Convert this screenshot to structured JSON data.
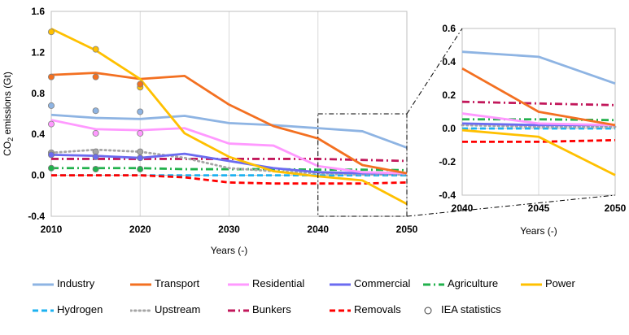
{
  "chart_data": [
    {
      "type": "line",
      "ylabel": "CO2 emissions (Gt)",
      "xlabel": "Years (-)",
      "xlim": [
        2010,
        2050
      ],
      "ylim": [
        -0.4,
        1.6
      ],
      "xticks": [
        2010,
        2020,
        2030,
        2040,
        2050
      ],
      "yticks": [
        -0.4,
        0.0,
        0.4,
        0.8,
        1.2,
        1.6
      ],
      "tick_labels_x": [
        "2010",
        "2020",
        "2030",
        "2040",
        "2050"
      ],
      "tick_labels_y": [
        "-0.4",
        "0.0",
        "0.4",
        "0.8",
        "1.2",
        "1.6"
      ],
      "grid": "vertical",
      "x": [
        2010,
        2015,
        2020,
        2025,
        2030,
        2035,
        2040,
        2045,
        2050
      ],
      "series": [
        {
          "name": "Industry",
          "color": "#8EB4E3",
          "style": "solid",
          "values": [
            0.59,
            0.56,
            0.55,
            0.58,
            0.51,
            0.49,
            0.46,
            0.43,
            0.27
          ]
        },
        {
          "name": "Transport",
          "color": "#F37021",
          "style": "solid",
          "values": [
            0.98,
            1.0,
            0.94,
            0.97,
            0.69,
            0.48,
            0.36,
            0.1,
            0.02
          ]
        },
        {
          "name": "Residential",
          "color": "#FF99FF",
          "style": "solid",
          "values": [
            0.54,
            0.45,
            0.44,
            0.46,
            0.31,
            0.29,
            0.09,
            0.03,
            0.02
          ]
        },
        {
          "name": "Commercial",
          "color": "#6B6BF0",
          "style": "solid",
          "values": [
            0.2,
            0.19,
            0.17,
            0.21,
            0.14,
            0.07,
            0.03,
            0.02,
            0.02
          ]
        },
        {
          "name": "Agriculture",
          "color": "#22B14C",
          "style": "dashdot",
          "values": [
            0.07,
            0.07,
            0.07,
            0.06,
            0.06,
            0.06,
            0.055,
            0.055,
            0.05
          ]
        },
        {
          "name": "Power",
          "color": "#FFC000",
          "style": "solid",
          "values": [
            1.43,
            1.22,
            0.94,
            0.41,
            0.18,
            0.04,
            -0.01,
            -0.05,
            -0.28
          ]
        },
        {
          "name": "Hydrogen",
          "color": "#1EB2F0",
          "style": "dashed",
          "values": [
            0.0,
            0.0,
            0.0,
            0.0,
            0.0,
            0.0,
            0.0,
            0.0,
            0.0
          ]
        },
        {
          "name": "Upstream",
          "color": "#A6A6A6",
          "style": "dotted",
          "values": [
            0.22,
            0.25,
            0.23,
            0.17,
            0.07,
            0.04,
            0.02,
            0.01,
            0.01
          ]
        },
        {
          "name": "Bunkers",
          "color": "#C2185B",
          "style": "dashdot",
          "values": [
            0.16,
            0.16,
            0.16,
            0.16,
            0.16,
            0.16,
            0.16,
            0.15,
            0.14
          ]
        },
        {
          "name": "Removals",
          "color": "#FF0000",
          "style": "dashed",
          "values": [
            0.0,
            0.0,
            0.0,
            -0.02,
            -0.07,
            -0.08,
            -0.08,
            -0.08,
            -0.07
          ]
        }
      ],
      "iea_statistics": {
        "name": "IEA statistics",
        "points": [
          {
            "series": "Power",
            "x": [
              2010,
              2015,
              2020
            ],
            "y": [
              1.4,
              1.23,
              0.86
            ]
          },
          {
            "series": "Transport",
            "x": [
              2010,
              2015,
              2020
            ],
            "y": [
              0.96,
              0.96,
              0.89
            ]
          },
          {
            "series": "Industry",
            "x": [
              2010,
              2015,
              2020
            ],
            "y": [
              0.68,
              0.63,
              0.62
            ]
          },
          {
            "series": "Residential",
            "x": [
              2010,
              2015,
              2020
            ],
            "y": [
              0.5,
              0.41,
              0.41
            ]
          },
          {
            "series": "Upstream",
            "x": [
              2010,
              2015,
              2020
            ],
            "y": [
              0.22,
              0.23,
              0.23
            ]
          },
          {
            "series": "Commercial",
            "x": [
              2010,
              2015,
              2020
            ],
            "y": [
              0.2,
              0.18,
              0.17
            ]
          },
          {
            "series": "Agriculture",
            "x": [
              2010,
              2015,
              2020
            ],
            "y": [
              0.07,
              0.06,
              0.06
            ]
          }
        ]
      }
    },
    {
      "type": "line",
      "xlabel": "Years (-)",
      "xlim": [
        2040,
        2050
      ],
      "ylim": [
        -0.4,
        0.6
      ],
      "xticks": [
        2040,
        2045,
        2050
      ],
      "yticks": [
        -0.4,
        -0.2,
        0.0,
        0.2,
        0.4,
        0.6
      ],
      "tick_labels_x": [
        "2040",
        "2045",
        "2050"
      ],
      "tick_labels_y": [
        "-0.4",
        "-0.2",
        "0.0",
        "0.2",
        "0.4",
        "0.6"
      ],
      "grid": "vertical",
      "x": [
        2040,
        2045,
        2050
      ],
      "series": [
        {
          "name": "Industry",
          "values": [
            0.46,
            0.43,
            0.27
          ]
        },
        {
          "name": "Transport",
          "values": [
            0.36,
            0.1,
            0.02
          ]
        },
        {
          "name": "Residential",
          "values": [
            0.09,
            0.03,
            0.02
          ]
        },
        {
          "name": "Commercial",
          "values": [
            0.03,
            0.02,
            0.02
          ]
        },
        {
          "name": "Agriculture",
          "values": [
            0.055,
            0.055,
            0.05
          ]
        },
        {
          "name": "Power",
          "values": [
            -0.01,
            -0.05,
            -0.28
          ]
        },
        {
          "name": "Hydrogen",
          "values": [
            0.0,
            0.0,
            0.0
          ]
        },
        {
          "name": "Upstream",
          "values": [
            0.02,
            0.01,
            0.01
          ]
        },
        {
          "name": "Bunkers",
          "values": [
            0.16,
            0.15,
            0.14
          ]
        },
        {
          "name": "Removals",
          "values": [
            -0.08,
            -0.08,
            -0.07
          ]
        }
      ]
    }
  ],
  "legend": [
    {
      "label": "Industry",
      "color": "#8EB4E3",
      "style": "solid"
    },
    {
      "label": "Transport",
      "color": "#F37021",
      "style": "solid"
    },
    {
      "label": "Residential",
      "color": "#FF99FF",
      "style": "solid"
    },
    {
      "label": "Commercial",
      "color": "#6B6BF0",
      "style": "solid"
    },
    {
      "label": "Agriculture",
      "color": "#22B14C",
      "style": "dashdot"
    },
    {
      "label": "Power",
      "color": "#FFC000",
      "style": "solid"
    },
    {
      "label": "Hydrogen",
      "color": "#1EB2F0",
      "style": "dashed"
    },
    {
      "label": "Upstream",
      "color": "#A6A6A6",
      "style": "dotted"
    },
    {
      "label": "Bunkers",
      "color": "#C2185B",
      "style": "dashdot"
    },
    {
      "label": "Removals",
      "color": "#FF0000",
      "style": "dashed"
    },
    {
      "label": "IEA statistics",
      "color": "#000000",
      "style": "marker"
    }
  ]
}
